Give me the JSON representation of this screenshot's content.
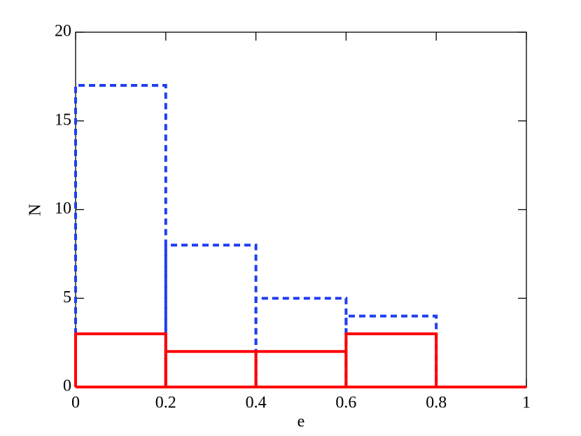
{
  "chart_data": {
    "type": "histogram",
    "xlabel": "e",
    "ylabel": "N",
    "bins": [
      0,
      0.2,
      0.4,
      0.6,
      0.8,
      1
    ],
    "series": [
      {
        "color": "#1f3ff0",
        "dash": true,
        "values": [
          17,
          8,
          5,
          4,
          0
        ]
      },
      {
        "color": "#ff0000",
        "dash": false,
        "values": [
          3,
          2,
          2,
          3,
          0
        ]
      }
    ],
    "xlim": [
      0,
      1
    ],
    "xticks": [
      0,
      0.2,
      0.4,
      0.6,
      0.8,
      1
    ],
    "ylim": [
      0,
      20
    ],
    "yticks": [
      0,
      5,
      10,
      15,
      20
    ]
  }
}
